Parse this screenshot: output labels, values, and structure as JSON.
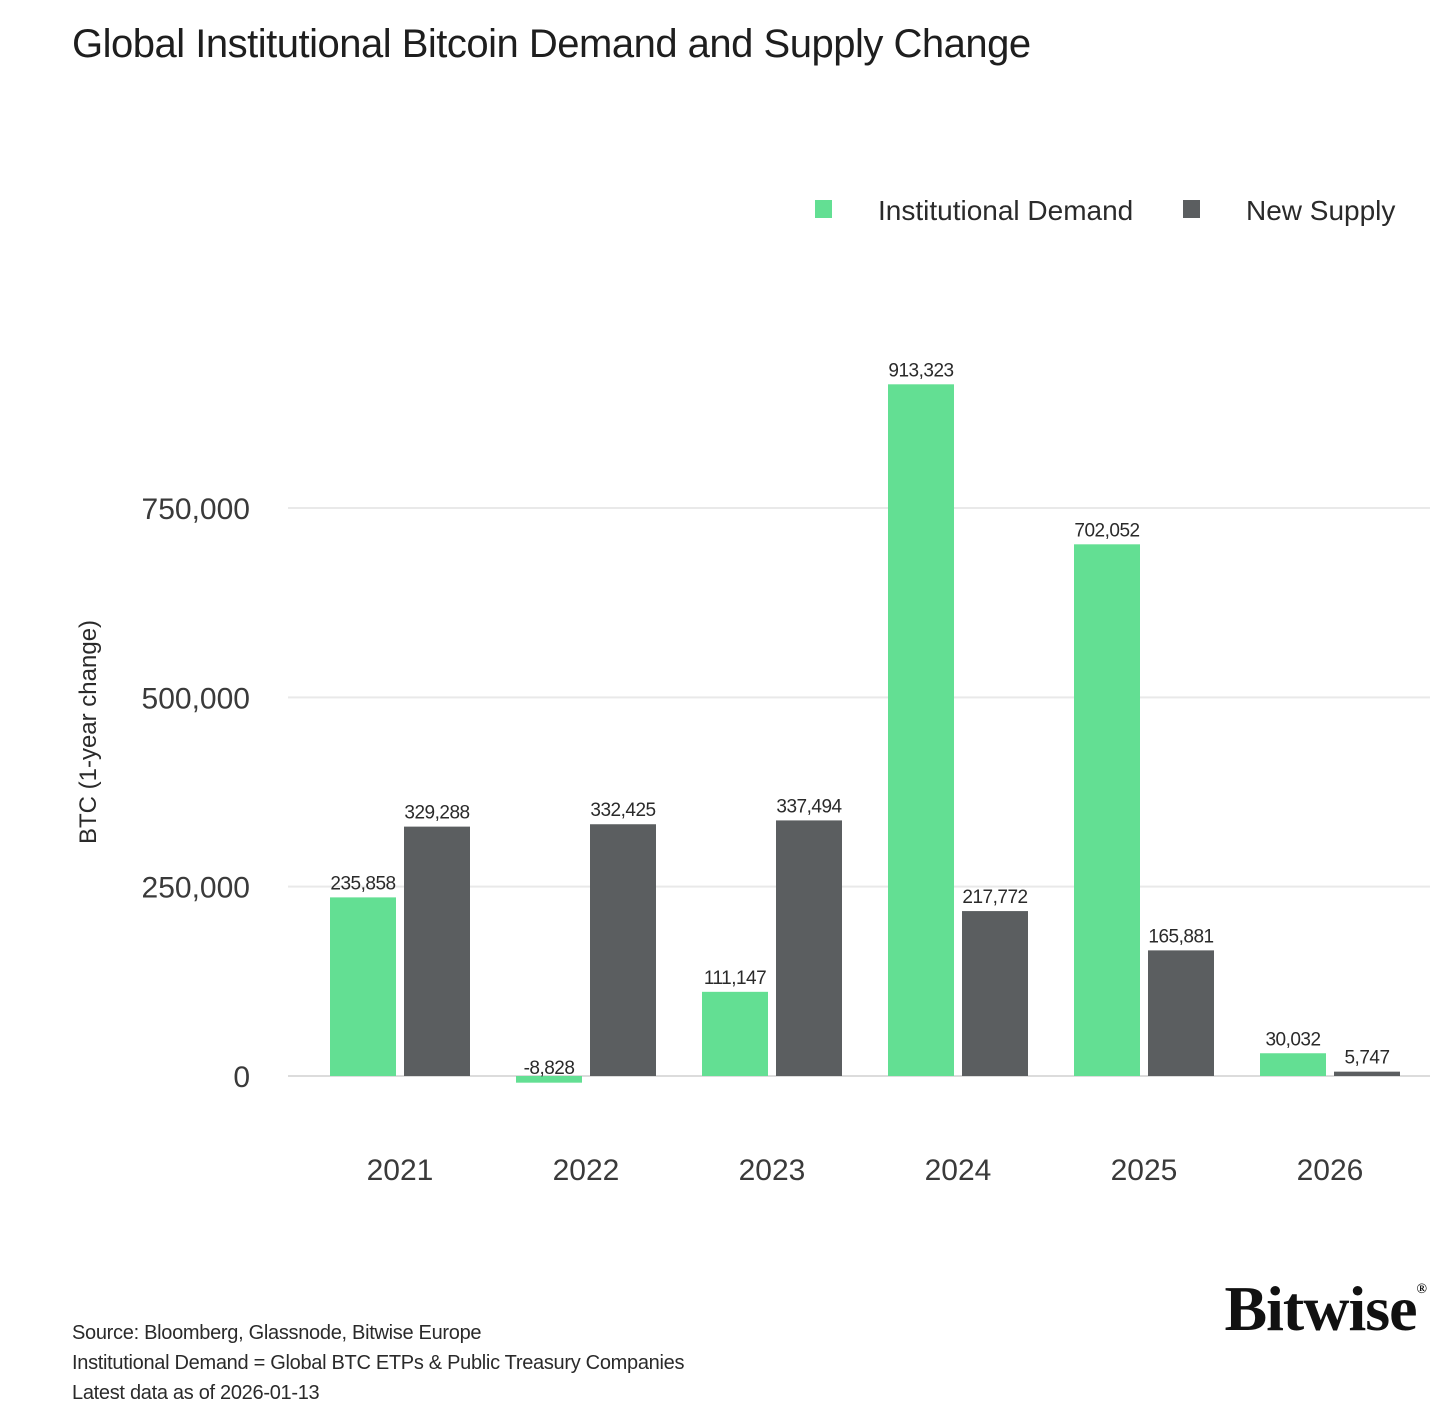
{
  "chart_data": {
    "type": "bar",
    "title": "Global Institutional Bitcoin Demand and Supply Change",
    "xlabel": "",
    "ylabel": "BTC (1-year change)",
    "categories": [
      "2021",
      "2022",
      "2023",
      "2024",
      "2025",
      "2026"
    ],
    "series": [
      {
        "name": "Institutional Demand",
        "color": "#63df93",
        "values": [
          235858,
          -8828,
          111147,
          913323,
          702052,
          30032
        ],
        "labels": [
          "235,858",
          "-8,828",
          "111,147",
          "913,323",
          "702,052",
          "30,032"
        ]
      },
      {
        "name": "New Supply",
        "color": "#5b5e60",
        "values": [
          329288,
          332425,
          337494,
          217772,
          165881,
          5747
        ],
        "labels": [
          "329,288",
          "332,425",
          "337,494",
          "217,772",
          "165,881",
          "5,747"
        ]
      }
    ],
    "yticks": [
      0,
      250000,
      500000,
      750000
    ],
    "ytick_labels": [
      "0",
      "250,000",
      "500,000",
      "750,000"
    ],
    "ylim": [
      -20000,
      1000000
    ],
    "grid": true,
    "legend_position": "top-right"
  },
  "footnotes": {
    "source": "Source: Bloomberg, Glassnode, Bitwise Europe",
    "definition": "Institutional Demand = Global BTC ETPs & Public Treasury Companies",
    "latest": "Latest data as of 2026-01-13"
  },
  "brand": {
    "name": "Bitwise",
    "mark": "®"
  }
}
